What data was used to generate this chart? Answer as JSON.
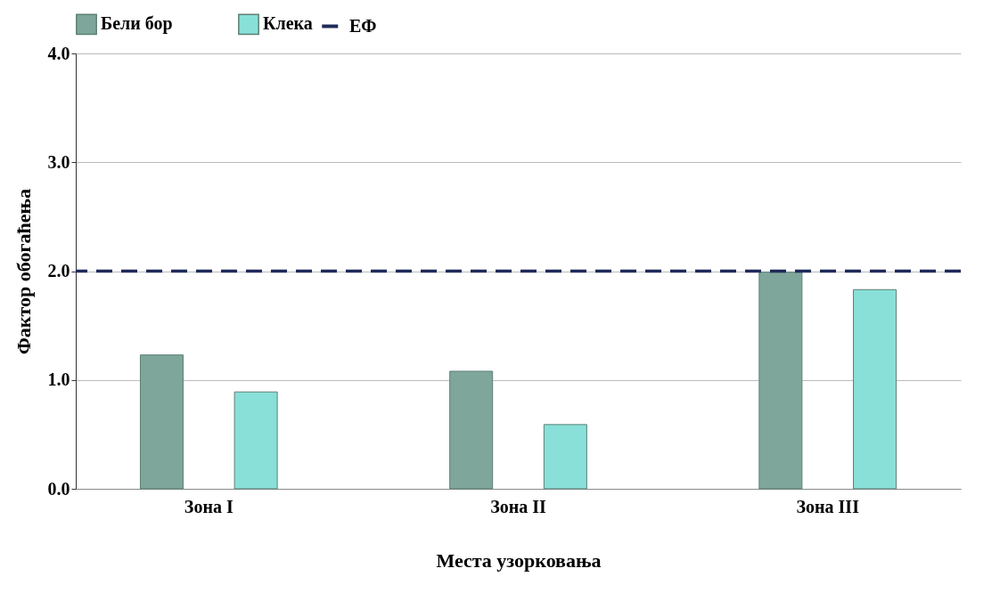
{
  "chart_data": {
    "type": "bar",
    "xlabel": "Места узорковања",
    "ylabel": "Фактор обогаћења",
    "categories": [
      "Зона I",
      "Зона II",
      "Зона III"
    ],
    "series": [
      {
        "name": "Бели бор",
        "color": "#7fa69b",
        "values": [
          1.23,
          1.08,
          1.99
        ]
      },
      {
        "name": "Клека",
        "color": "#88e0d8",
        "values": [
          0.89,
          0.59,
          1.83
        ]
      }
    ],
    "ylim": [
      0,
      4
    ],
    "yticks": [
      {
        "value": 0,
        "label": "0.0"
      },
      {
        "value": 1,
        "label": "1.0"
      },
      {
        "value": 2,
        "label": "2.0"
      },
      {
        "value": 3,
        "label": "3.0"
      },
      {
        "value": 4,
        "label": "4.0"
      }
    ],
    "ref_lines": [
      {
        "axis": "y",
        "value": 2,
        "label": "ЕФ",
        "color": "#1f2a5a",
        "line_style": "dashed"
      }
    ],
    "grid": "y",
    "legend": "top"
  }
}
